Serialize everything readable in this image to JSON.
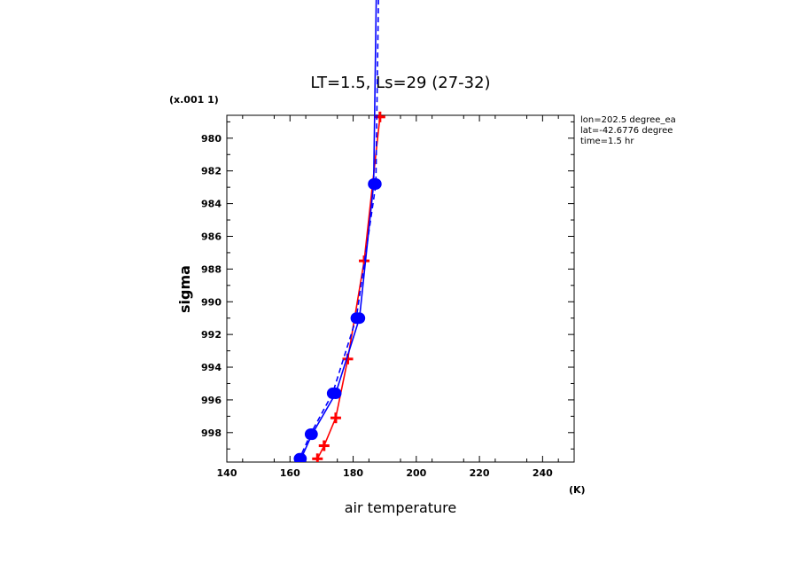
{
  "chart_data": {
    "type": "line",
    "title": "LT=1.5, Ls=29 (27-32)",
    "xlabel": "air temperature",
    "ylabel": "sigma",
    "x_units": "(K)",
    "y_scale_note": "(x.001 1)",
    "xlim": [
      140,
      250
    ],
    "ylim": [
      999.8,
      978.6
    ],
    "y_inverted": true,
    "x_ticks": [
      140,
      160,
      180,
      200,
      220,
      240
    ],
    "y_ticks": [
      980,
      982,
      984,
      986,
      988,
      990,
      992,
      994,
      996,
      998
    ],
    "grid": false,
    "info": [
      "lon=202.5 degree_ea",
      "lat=-42.6776 degree",
      "time=1.5 hr"
    ],
    "series": [
      {
        "color": "#ff0000",
        "marker": "plus",
        "style": "solid",
        "points": [
          [
            188.5,
            978.7
          ],
          [
            183.5,
            987.5
          ],
          [
            178.3,
            993.5
          ],
          [
            174.5,
            997.1
          ],
          [
            170.8,
            998.8
          ],
          [
            168.7,
            999.6
          ]
        ]
      },
      {
        "color": "#0000ff",
        "marker": "circle",
        "style": "solid",
        "points": [
          [
            187.8,
            965.0
          ],
          [
            186.5,
            982.8
          ],
          [
            182.0,
            991.0
          ],
          [
            174.5,
            995.6
          ],
          [
            167.0,
            998.1
          ],
          [
            163.5,
            999.6
          ]
        ]
      },
      {
        "color": "#0000ff",
        "marker": "circle",
        "style": "dashed",
        "points": [
          [
            188.5,
            965.0
          ],
          [
            187.2,
            982.8
          ],
          [
            181.0,
            991.0
          ],
          [
            173.5,
            995.6
          ],
          [
            166.5,
            998.1
          ],
          [
            163.0,
            999.6
          ]
        ]
      }
    ]
  }
}
